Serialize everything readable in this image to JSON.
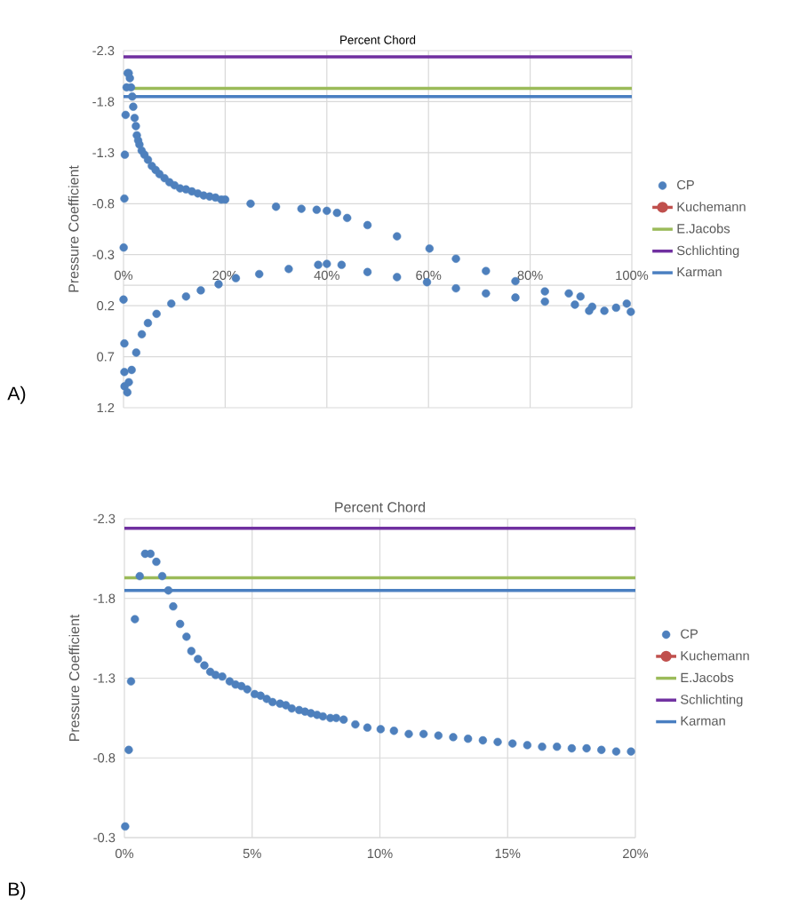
{
  "chart_data": [
    {
      "type": "scatter",
      "xlabel": "Percent Chord",
      "ylabel": "Pressure Coefficient",
      "xlim": [
        0,
        100
      ],
      "ylim": [
        1.2,
        -2.3
      ],
      "xticks": [
        {
          "value": 0,
          "label": "0%"
        },
        {
          "value": 20,
          "label": "20%"
        },
        {
          "value": 40,
          "label": "40%"
        },
        {
          "value": 60,
          "label": "60%"
        },
        {
          "value": 80,
          "label": "80%"
        },
        {
          "value": 100,
          "label": "100%"
        }
      ],
      "yticks": [
        -2.3,
        -1.8,
        -1.3,
        -0.8,
        -0.3,
        0.2,
        0.7,
        1.2
      ],
      "grid": true,
      "legend": "right",
      "marker": "circle",
      "annotations": [
        "A)"
      ],
      "series": [
        {
          "name": "CP",
          "color": "#4e80bd",
          "x": [
            0.03,
            0.17,
            0.26,
            0.41,
            0.6,
            0.81,
            1.02,
            1.25,
            1.48,
            1.72,
            1.91,
            2.18,
            2.43,
            2.62,
            2.88,
            3.13,
            3.57,
            4.12,
            4.81,
            5.57,
            6.32,
            7.07,
            8.06,
            9.04,
            10.03,
            11.13,
            12.29,
            13.45,
            14.61,
            15.77,
            16.93,
            18.09,
            19.25,
            20,
            25,
            30,
            35,
            38,
            40,
            42,
            44,
            48,
            53.8,
            60.2,
            65.4,
            71.3,
            77.1,
            82.9,
            87.6,
            89.9,
            92.2,
            94.6,
            96.9,
            99.0,
            99.8,
            0,
            0.17,
            0.17,
            0.2,
            0.75,
            1.04,
            1.6,
            2.5,
            3.6,
            4.8,
            6.5,
            9.4,
            12.3,
            15.2,
            18.7,
            22.1,
            26.7,
            32.5,
            38.3,
            40,
            42.9,
            48,
            53.8,
            59.7,
            65.4,
            71.3,
            77.1,
            82.9,
            88.8,
            91.6
          ],
          "values": [
            -0.37,
            -0.85,
            -1.28,
            -1.67,
            -1.94,
            -2.08,
            -2.08,
            -2.03,
            -1.94,
            -1.85,
            -1.75,
            -1.64,
            -1.56,
            -1.47,
            -1.42,
            -1.38,
            -1.32,
            -1.28,
            -1.23,
            -1.17,
            -1.13,
            -1.09,
            -1.05,
            -1.01,
            -0.98,
            -0.95,
            -0.94,
            -0.92,
            -0.9,
            -0.88,
            -0.87,
            -0.86,
            -0.84,
            -0.84,
            -0.8,
            -0.77,
            -0.75,
            -0.74,
            -0.73,
            -0.71,
            -0.66,
            -0.59,
            -0.48,
            -0.36,
            -0.26,
            -0.14,
            -0.04,
            0.06,
            0.08,
            0.11,
            0.21,
            0.25,
            0.22,
            0.18,
            0.26,
            0.14,
            0.57,
            0.85,
            0.99,
            1.05,
            0.95,
            0.83,
            0.66,
            0.48,
            0.37,
            0.28,
            0.18,
            0.11,
            0.05,
            -0.01,
            -0.07,
            -0.11,
            -0.16,
            -0.2,
            -0.21,
            -0.2,
            -0.13,
            -0.08,
            -0.03,
            0.03,
            0.08,
            0.12,
            0.16,
            0.19,
            0.25
          ]
        },
        {
          "name": "Kuchemann",
          "type": "line",
          "color": "#c0504d",
          "values": [
            null,
            null
          ]
        },
        {
          "name": "E.Jacobs",
          "type": "line",
          "marker": "none",
          "color": "#9bbb59",
          "x": [
            0,
            100
          ],
          "values": [
            -1.93,
            -1.93
          ]
        },
        {
          "name": "Schlichting",
          "type": "line",
          "marker": "none",
          "color": "#7030a0",
          "x": [
            0,
            100
          ],
          "values": [
            -2.24,
            -2.24
          ]
        },
        {
          "name": "Karman",
          "type": "line",
          "marker": "none",
          "color": "#4a7fc1",
          "x": [
            0,
            100
          ],
          "values": [
            -1.85,
            -1.85
          ]
        }
      ]
    },
    {
      "type": "scatter",
      "xlabel": "Percent Chord",
      "ylabel": "Pressure Coefficient",
      "xlim": [
        0,
        20
      ],
      "ylim": [
        -0.3,
        -2.3
      ],
      "xticks": [
        {
          "value": 0,
          "label": "0%"
        },
        {
          "value": 5,
          "label": "5%"
        },
        {
          "value": 10,
          "label": "10%"
        },
        {
          "value": 15,
          "label": "15%"
        },
        {
          "value": 20,
          "label": "20%"
        }
      ],
      "yticks": [
        -2.3,
        -1.8,
        -1.3,
        -0.8,
        -0.3
      ],
      "grid": true,
      "legend": "right",
      "marker": "circle",
      "annotations": [
        "B)"
      ],
      "series": [
        {
          "name": "CP",
          "color": "#4e80bd",
          "x": [
            0.03,
            0.17,
            0.26,
            0.41,
            0.6,
            0.81,
            1.02,
            1.25,
            1.48,
            1.72,
            1.91,
            2.18,
            2.43,
            2.62,
            2.88,
            3.13,
            3.36,
            3.57,
            3.83,
            4.12,
            4.35,
            4.58,
            4.81,
            5.1,
            5.33,
            5.57,
            5.8,
            6.09,
            6.32,
            6.55,
            6.84,
            7.07,
            7.3,
            7.54,
            7.77,
            8.06,
            8.29,
            8.58,
            9.04,
            9.51,
            10.03,
            10.55,
            11.13,
            11.71,
            12.29,
            12.87,
            13.45,
            14.03,
            14.61,
            15.19,
            15.77,
            16.35,
            16.93,
            17.51,
            18.09,
            18.67,
            19.25,
            19.83
          ],
          "values": [
            -0.37,
            -0.85,
            -1.28,
            -1.67,
            -1.94,
            -2.08,
            -2.08,
            -2.03,
            -1.94,
            -1.85,
            -1.75,
            -1.64,
            -1.56,
            -1.47,
            -1.42,
            -1.38,
            -1.34,
            -1.32,
            -1.31,
            -1.28,
            -1.26,
            -1.25,
            -1.23,
            -1.2,
            -1.19,
            -1.17,
            -1.15,
            -1.14,
            -1.13,
            -1.11,
            -1.1,
            -1.09,
            -1.08,
            -1.07,
            -1.06,
            -1.05,
            -1.05,
            -1.04,
            -1.01,
            -0.99,
            -0.98,
            -0.97,
            -0.95,
            -0.95,
            -0.94,
            -0.93,
            -0.92,
            -0.91,
            -0.9,
            -0.89,
            -0.88,
            -0.87,
            -0.87,
            -0.86,
            -0.86,
            -0.85,
            -0.84,
            -0.84
          ]
        },
        {
          "name": "Kuchemann",
          "type": "line",
          "color": "#c0504d",
          "values": [
            null,
            null
          ]
        },
        {
          "name": "E.Jacobs",
          "type": "line",
          "marker": "none",
          "color": "#9bbb59",
          "x": [
            0,
            20
          ],
          "values": [
            -1.93,
            -1.93
          ]
        },
        {
          "name": "Schlichting",
          "type": "line",
          "marker": "none",
          "color": "#7030a0",
          "x": [
            0,
            20
          ],
          "values": [
            -2.24,
            -2.24
          ]
        },
        {
          "name": "Karman",
          "type": "line",
          "marker": "none",
          "color": "#4a7fc1",
          "x": [
            0,
            20
          ],
          "values": [
            -1.85,
            -1.85
          ]
        }
      ]
    }
  ]
}
